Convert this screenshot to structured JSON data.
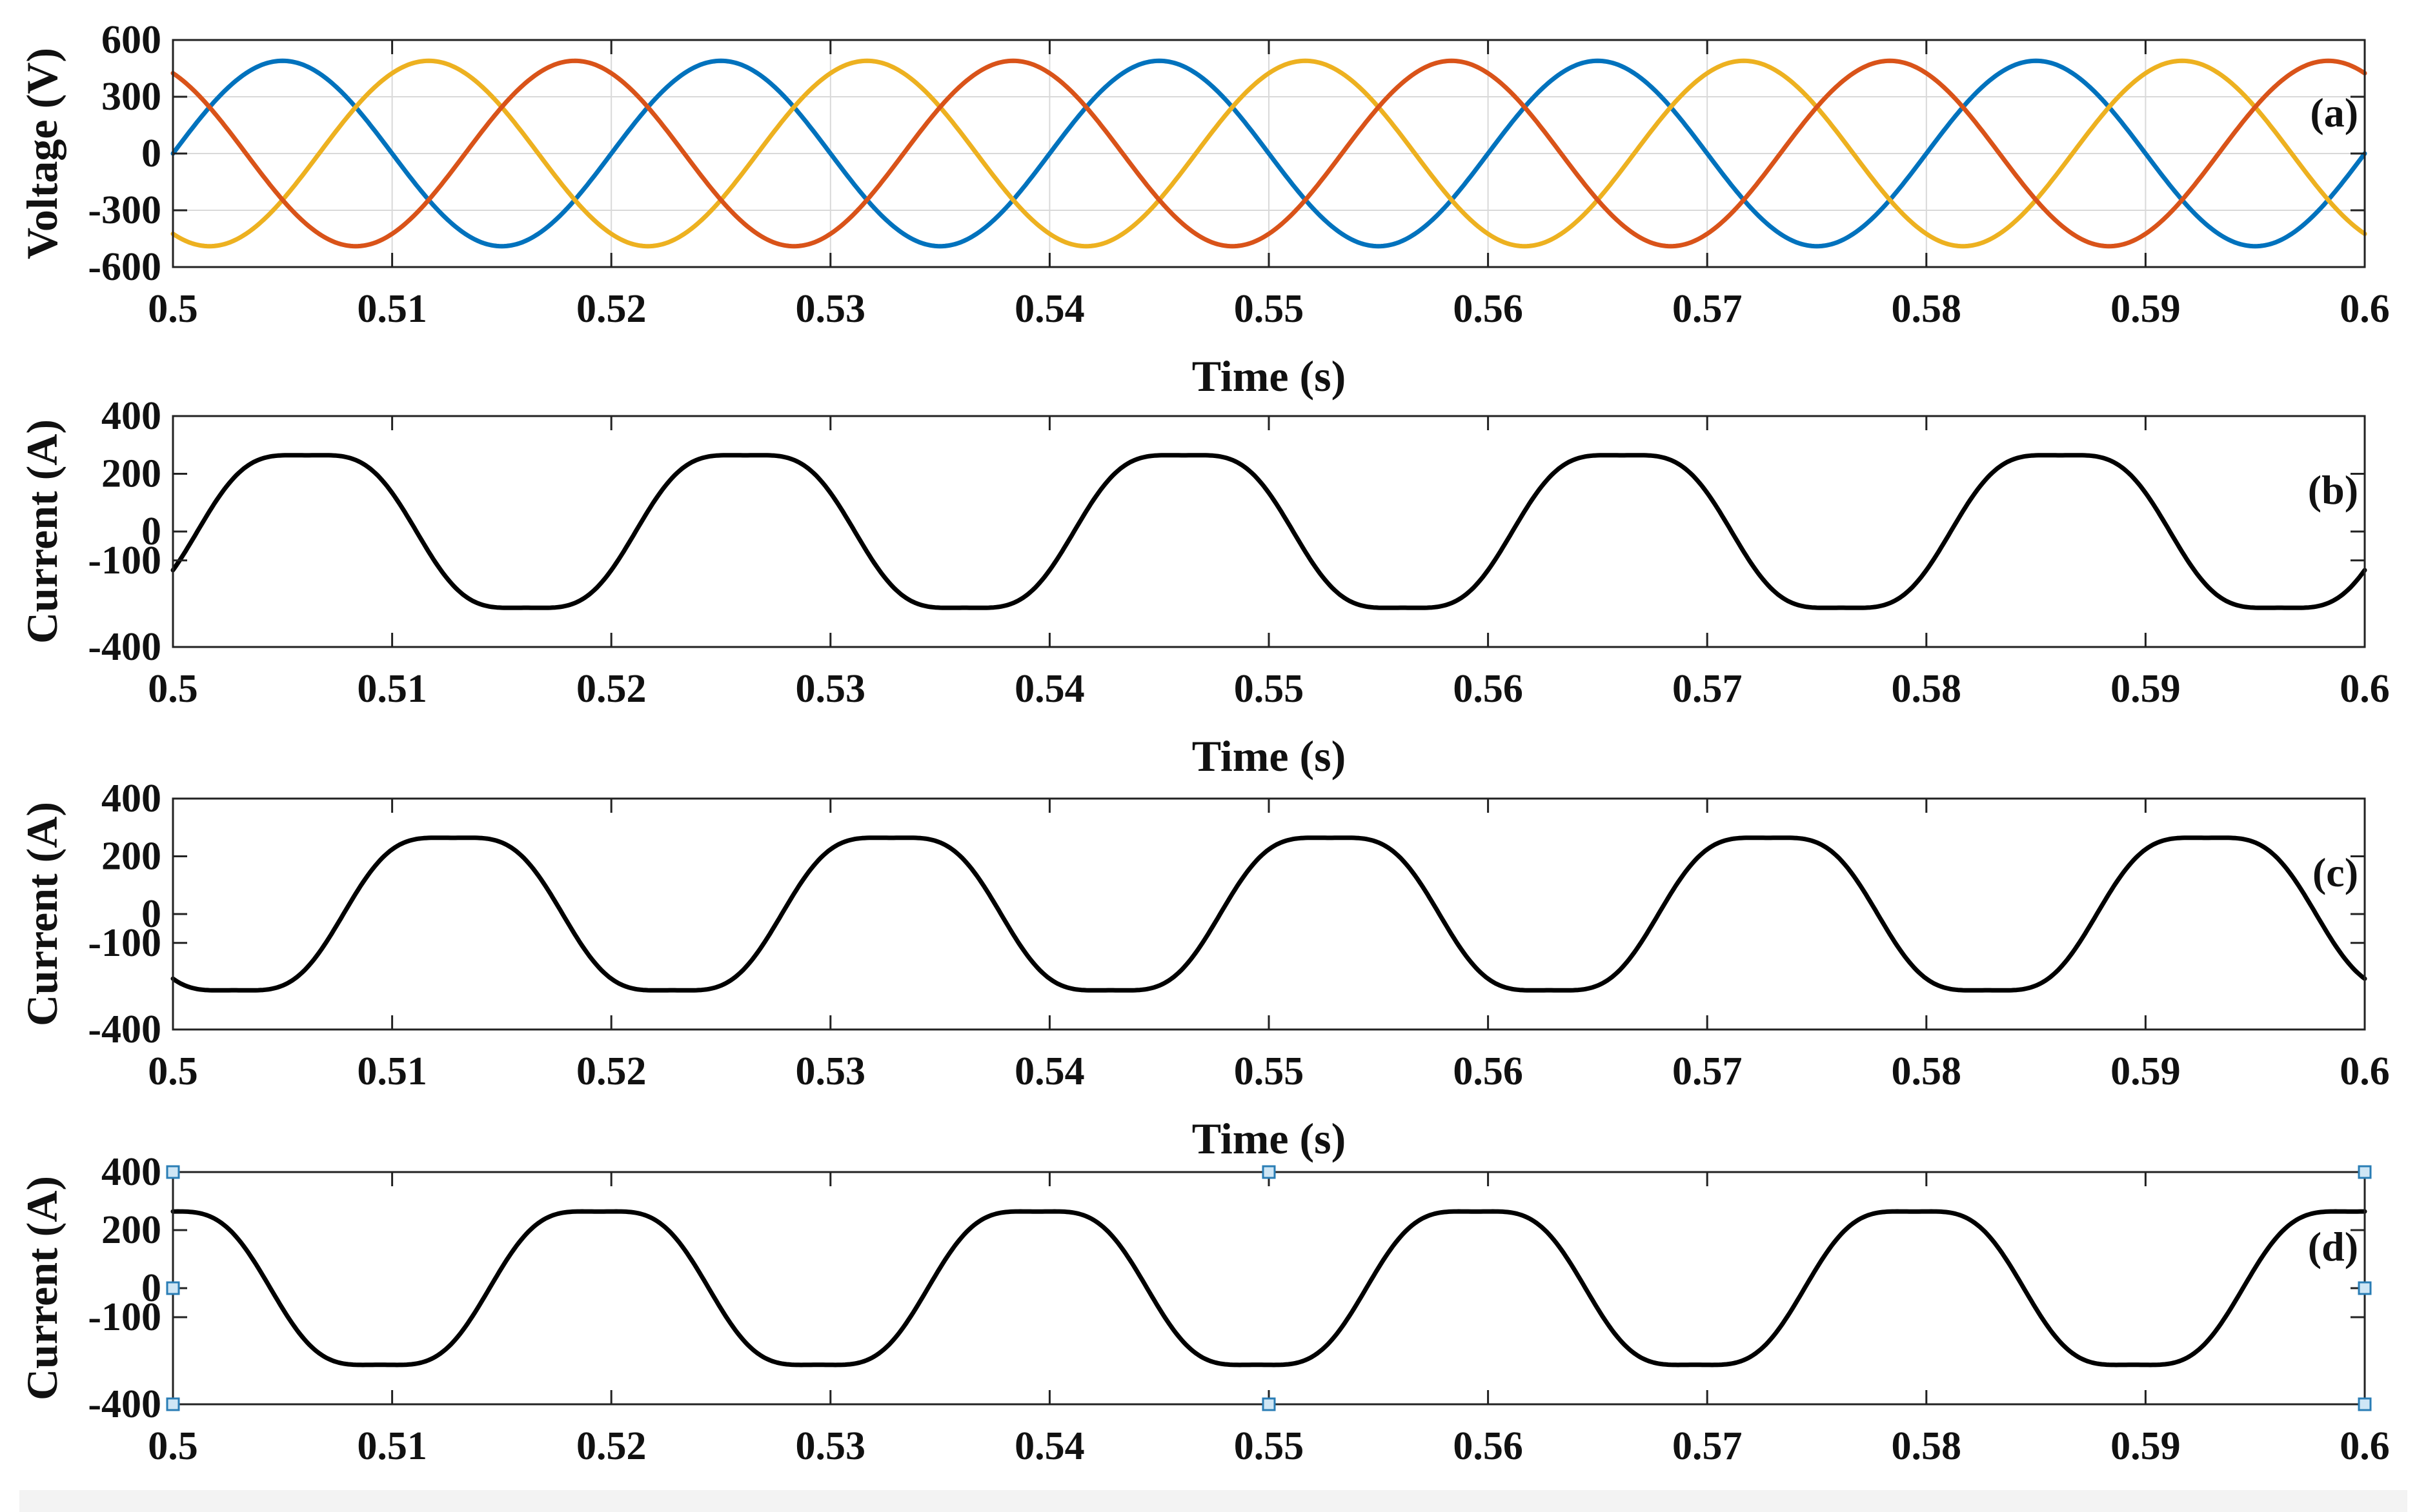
{
  "chart_data": [
    {
      "type": "line",
      "panel_label": "(a)",
      "xlabel": "Time (s)",
      "ylabel": "Voltage (V)",
      "xlim": [
        0.5,
        0.6
      ],
      "ylim": [
        -600,
        600
      ],
      "xticks": [
        "0.5",
        "0.51",
        "0.52",
        "0.53",
        "0.54",
        "0.55",
        "0.56",
        "0.57",
        "0.58",
        "0.59",
        "0.6"
      ],
      "yticks": [
        {
          "value": 600,
          "label": "600"
        },
        {
          "value": 300,
          "label": "300"
        },
        {
          "value": 0,
          "label": "0"
        },
        {
          "value": -300,
          "label": "-300"
        },
        {
          "value": -600,
          "label": "-600"
        }
      ],
      "grid": true,
      "frequency_hz": 50,
      "series": [
        {
          "amplitude": 490,
          "phase_deg": 0,
          "color": "#0072BD"
        },
        {
          "amplitude": 490,
          "phase_deg": -120,
          "color": "#EDB120"
        },
        {
          "amplitude": 490,
          "phase_deg": 120,
          "color": "#D95319"
        }
      ]
    },
    {
      "type": "line",
      "panel_label": "(b)",
      "xlabel": "Time (s)",
      "ylabel": "Current (A)",
      "xlim": [
        0.5,
        0.6
      ],
      "ylim": [
        -400,
        400
      ],
      "xticks": [
        "0.5",
        "0.51",
        "0.52",
        "0.53",
        "0.54",
        "0.55",
        "0.56",
        "0.57",
        "0.58",
        "0.59",
        "0.6"
      ],
      "yticks": [
        {
          "value": 400,
          "label": "400"
        },
        {
          "value": 200,
          "label": "200"
        },
        {
          "value": 0,
          "label": "0"
        },
        {
          "value": -100,
          "label": "-100"
        },
        {
          "value": -400,
          "label": "-400"
        }
      ],
      "grid": false,
      "frequency_hz": 50,
      "series": [
        {
          "amplitude": 300,
          "phase_deg": -20,
          "color": "#000000"
        }
      ]
    },
    {
      "type": "line",
      "panel_label": "(c)",
      "xlabel": "Time (s)",
      "ylabel": "Current (A)",
      "xlim": [
        0.5,
        0.6
      ],
      "ylim": [
        -400,
        400
      ],
      "xticks": [
        "0.5",
        "0.51",
        "0.52",
        "0.53",
        "0.54",
        "0.55",
        "0.56",
        "0.57",
        "0.58",
        "0.59",
        "0.6"
      ],
      "yticks": [
        {
          "value": 400,
          "label": "400"
        },
        {
          "value": 200,
          "label": "200"
        },
        {
          "value": 0,
          "label": "0"
        },
        {
          "value": -100,
          "label": "-100"
        },
        {
          "value": -400,
          "label": "-400"
        }
      ],
      "grid": false,
      "frequency_hz": 50,
      "series": [
        {
          "amplitude": 300,
          "phase_deg": -140,
          "color": "#000000"
        }
      ]
    },
    {
      "type": "line",
      "panel_label": "(d)",
      "xlabel": "",
      "ylabel": "Current (A)",
      "xlim": [
        0.5,
        0.6
      ],
      "ylim": [
        -400,
        400
      ],
      "xticks": [
        "0.5",
        "0.51",
        "0.52",
        "0.53",
        "0.54",
        "0.55",
        "0.56",
        "0.57",
        "0.58",
        "0.59",
        "0.6"
      ],
      "yticks": [
        {
          "value": 400,
          "label": "400"
        },
        {
          "value": 200,
          "label": "200"
        },
        {
          "value": 0,
          "label": "0"
        },
        {
          "value": -100,
          "label": "-100"
        },
        {
          "value": -400,
          "label": "-400"
        }
      ],
      "grid": false,
      "frequency_hz": 50,
      "series": [
        {
          "amplitude": 300,
          "phase_deg": 100,
          "color": "#000000"
        }
      ]
    }
  ]
}
